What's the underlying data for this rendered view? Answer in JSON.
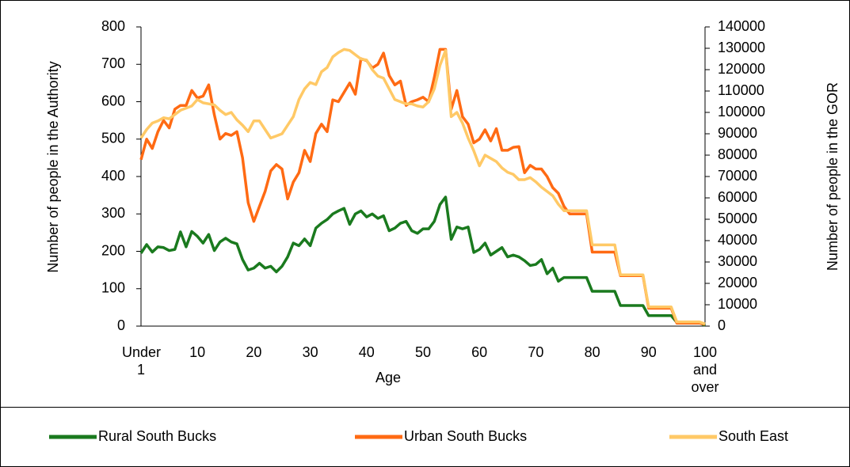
{
  "chart_data": {
    "type": "line",
    "xlabel": "Age",
    "ylabel": "Number of people in the Authority",
    "y2label": "Number of people in the GOR",
    "categories": [
      "Under 1",
      null,
      null,
      null,
      null,
      null,
      null,
      null,
      null,
      null,
      "10",
      null,
      null,
      null,
      null,
      null,
      null,
      null,
      null,
      null,
      "20",
      null,
      null,
      null,
      null,
      null,
      null,
      null,
      null,
      null,
      "30",
      null,
      null,
      null,
      null,
      null,
      null,
      null,
      null,
      null,
      "40",
      null,
      null,
      null,
      null,
      null,
      null,
      null,
      null,
      null,
      "50",
      null,
      null,
      null,
      null,
      null,
      null,
      null,
      null,
      null,
      "60",
      null,
      null,
      null,
      null,
      null,
      null,
      null,
      null,
      null,
      "70",
      null,
      null,
      null,
      null,
      null,
      null,
      null,
      null,
      null,
      "80",
      null,
      null,
      null,
      null,
      null,
      null,
      null,
      null,
      null,
      "90",
      null,
      null,
      null,
      null,
      null,
      null,
      null,
      null,
      null,
      "100 and over"
    ],
    "ylim": [
      0,
      800
    ],
    "yticks": [
      0,
      100,
      200,
      300,
      400,
      500,
      600,
      700,
      800
    ],
    "y2lim": [
      0,
      140000
    ],
    "y2ticks": [
      0,
      10000,
      20000,
      30000,
      40000,
      50000,
      60000,
      70000,
      80000,
      90000,
      100000,
      110000,
      120000,
      130000,
      140000
    ],
    "legend": "bottom",
    "series": [
      {
        "name": "Rural South Bucks",
        "color": "#1a7a1e",
        "values": [
          195,
          218,
          198,
          212,
          210,
          202,
          205,
          252,
          212,
          253,
          240,
          222,
          245,
          202,
          225,
          235,
          225,
          220,
          178,
          150,
          155,
          168,
          155,
          160,
          145,
          160,
          185,
          222,
          215,
          233,
          215,
          262,
          275,
          285,
          300,
          308,
          315,
          272,
          300,
          308,
          292,
          300,
          288,
          295,
          255,
          262,
          275,
          280,
          255,
          248,
          260,
          260,
          280,
          325,
          345,
          232,
          265,
          260,
          265,
          197,
          205,
          222,
          190,
          200,
          210,
          185,
          190,
          185,
          175,
          162,
          165,
          178,
          140,
          155,
          120,
          130,
          130,
          130,
          130,
          130,
          93,
          93,
          93,
          93,
          93,
          55,
          55,
          55,
          55,
          55,
          28,
          28,
          28,
          28,
          28,
          10,
          10,
          10,
          10,
          10,
          2
        ]
      },
      {
        "name": "Urban South Bucks",
        "color": "#ff6a13",
        "values": [
          445,
          500,
          475,
          520,
          550,
          530,
          580,
          590,
          590,
          630,
          610,
          615,
          645,
          565,
          500,
          515,
          510,
          520,
          450,
          330,
          280,
          320,
          360,
          415,
          432,
          420,
          340,
          385,
          410,
          470,
          440,
          515,
          540,
          520,
          605,
          600,
          625,
          650,
          620,
          715,
          710,
          690,
          700,
          730,
          670,
          645,
          655,
          590,
          600,
          605,
          612,
          600,
          665,
          740,
          740,
          580,
          630,
          560,
          540,
          490,
          500,
          525,
          495,
          528,
          470,
          470,
          478,
          480,
          410,
          430,
          420,
          420,
          400,
          370,
          355,
          320,
          300,
          300,
          300,
          300,
          198,
          198,
          198,
          198,
          198,
          135,
          135,
          135,
          135,
          135,
          48,
          48,
          48,
          48,
          48,
          8,
          8,
          8,
          8,
          8,
          5
        ]
      },
      {
        "name": "South East",
        "color": "#ffc966",
        "axis": "y2",
        "values": [
          88000,
          92000,
          95000,
          96000,
          97500,
          97000,
          99000,
          101000,
          102000,
          103000,
          106000,
          104500,
          104000,
          103500,
          101000,
          99000,
          100000,
          96500,
          94000,
          91000,
          96000,
          96000,
          92000,
          88000,
          89000,
          90000,
          94000,
          98000,
          106000,
          111000,
          114000,
          113000,
          119000,
          121000,
          126000,
          128000,
          129500,
          129000,
          127000,
          125000,
          124500,
          120000,
          117000,
          116000,
          111000,
          106000,
          105000,
          104000,
          104000,
          103000,
          102500,
          105000,
          111000,
          122000,
          129000,
          98000,
          100000,
          95000,
          88000,
          82000,
          75000,
          80000,
          78500,
          77000,
          74000,
          72000,
          71000,
          68500,
          68500,
          69500,
          67500,
          65000,
          63000,
          61000,
          57000,
          54000,
          54000,
          54000,
          54000,
          54000,
          38000,
          38000,
          38000,
          38000,
          38000,
          24000,
          24000,
          24000,
          24000,
          24000,
          9000,
          9000,
          9000,
          9000,
          9000,
          2000,
          2000,
          2000,
          2000,
          2000,
          1000
        ]
      }
    ]
  }
}
